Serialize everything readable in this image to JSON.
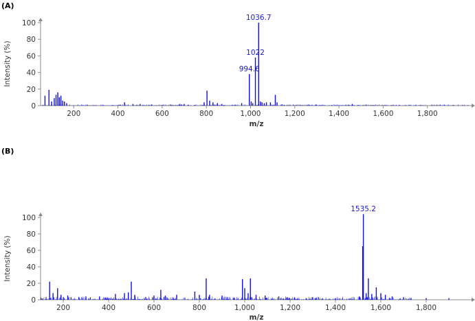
{
  "colors": {
    "spectrum": "#1010e0",
    "axis": "#8a8a8a",
    "text": "#333333"
  },
  "chart_data": [
    {
      "type": "line",
      "panel_label": "(A)",
      "xlabel": "m/z",
      "ylabel": "Intensity (%)",
      "xlim": [
        50,
        2000
      ],
      "ylim": [
        0,
        100
      ],
      "x_ticks": [
        200,
        400,
        600,
        800,
        1000,
        1200,
        1400,
        1600,
        1800
      ],
      "x_tick_labels": [
        "200",
        "400",
        "600",
        "800",
        "1,000",
        "1,200",
        "1,400",
        "1,600",
        "1,800"
      ],
      "y_ticks": [
        0,
        20,
        40,
        60,
        80,
        100
      ],
      "y_tick_labels": [
        "0",
        "20",
        "40",
        "60",
        "80",
        "100"
      ],
      "peaks": [
        [
          70,
          12
        ],
        [
          88,
          19
        ],
        [
          100,
          5
        ],
        [
          112,
          9
        ],
        [
          120,
          13
        ],
        [
          128,
          16
        ],
        [
          135,
          10
        ],
        [
          142,
          12
        ],
        [
          150,
          6
        ],
        [
          158,
          5
        ],
        [
          168,
          3
        ],
        [
          430,
          4
        ],
        [
          468,
          2
        ],
        [
          500,
          2
        ],
        [
          680,
          2
        ],
        [
          700,
          2
        ],
        [
          790,
          4
        ],
        [
          803,
          18
        ],
        [
          815,
          6
        ],
        [
          830,
          4
        ],
        [
          850,
          3
        ],
        [
          870,
          2
        ],
        [
          960,
          3
        ],
        [
          994.6,
          38
        ],
        [
          1003,
          5
        ],
        [
          1010,
          3
        ],
        [
          1022,
          58
        ],
        [
          1036.7,
          100
        ],
        [
          1045,
          5
        ],
        [
          1052,
          4
        ],
        [
          1062,
          3
        ],
        [
          1072,
          4
        ],
        [
          1090,
          4
        ],
        [
          1112,
          13
        ],
        [
          1120,
          4
        ],
        [
          1460,
          2
        ]
      ],
      "noise_range": [
        50,
        1990
      ],
      "noise_max": 1.5,
      "annotations": [
        {
          "x": 994.6,
          "label": "994.6"
        },
        {
          "x": 1022,
          "label": "1022"
        },
        {
          "x": 1036.7,
          "label": "1036.7"
        }
      ]
    },
    {
      "type": "line",
      "panel_label": "(B)",
      "xlabel": "m/z",
      "ylabel": "Intensity (%)",
      "xlim": [
        100,
        2000
      ],
      "ylim": [
        0,
        100
      ],
      "x_ticks": [
        200,
        400,
        600,
        800,
        1000,
        1200,
        1400,
        1600,
        1800
      ],
      "x_tick_labels": [
        "200",
        "400",
        "600",
        "800",
        "1,000",
        "1,200",
        "1,400",
        "1,600",
        "1,800"
      ],
      "y_ticks": [
        0,
        20,
        40,
        60,
        80,
        100
      ],
      "y_tick_labels": [
        "0",
        "20",
        "40",
        "60",
        "80",
        "100"
      ],
      "peaks": [
        [
          140,
          22
        ],
        [
          155,
          8
        ],
        [
          175,
          14
        ],
        [
          190,
          6
        ],
        [
          220,
          5
        ],
        [
          300,
          4
        ],
        [
          360,
          4
        ],
        [
          430,
          7
        ],
        [
          470,
          8
        ],
        [
          487,
          9
        ],
        [
          500,
          22
        ],
        [
          515,
          6
        ],
        [
          600,
          5
        ],
        [
          630,
          12
        ],
        [
          650,
          5
        ],
        [
          700,
          6
        ],
        [
          780,
          10
        ],
        [
          800,
          6
        ],
        [
          830,
          26
        ],
        [
          845,
          6
        ],
        [
          900,
          5
        ],
        [
          990,
          25
        ],
        [
          1000,
          14
        ],
        [
          1015,
          8
        ],
        [
          1025,
          26
        ],
        [
          1050,
          6
        ],
        [
          1090,
          5
        ],
        [
          1150,
          4
        ],
        [
          1220,
          3
        ],
        [
          1300,
          3
        ],
        [
          1400,
          2
        ],
        [
          1505,
          4
        ],
        [
          1520,
          65
        ],
        [
          1523,
          104
        ],
        [
          1535.2,
          8
        ],
        [
          1545,
          26
        ],
        [
          1560,
          7
        ],
        [
          1580,
          15
        ],
        [
          1600,
          8
        ],
        [
          1620,
          6
        ],
        [
          1650,
          4
        ],
        [
          1700,
          3
        ],
        [
          1800,
          2
        ],
        [
          1900,
          2
        ]
      ],
      "noise_range": [
        100,
        1740
      ],
      "noise_max": 4,
      "annotations": [
        {
          "x": 1535.2,
          "peak_x": 1523,
          "label": "1535.2"
        }
      ]
    }
  ]
}
